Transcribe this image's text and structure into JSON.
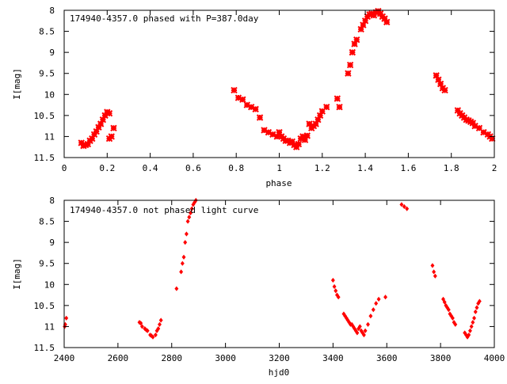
{
  "chart_data": [
    {
      "type": "scatter",
      "title": "174940-4357.0 phased with P=387.0day",
      "xlabel": "phase",
      "ylabel": "I[mag]",
      "xlim": [
        0,
        2
      ],
      "ylim": [
        11.5,
        8
      ],
      "y_reversed": true,
      "xticks": [
        0,
        0.2,
        0.4,
        0.6,
        0.8,
        1,
        1.2,
        1.4,
        1.6,
        1.8,
        2
      ],
      "xtick_labels": [
        "0",
        "0.2",
        "0.4",
        "0.6",
        "0.8",
        "1",
        "1.2",
        "1.4",
        "1.6",
        "1.8",
        "2"
      ],
      "yticks": [
        8,
        8.5,
        9,
        9.5,
        10,
        10.5,
        11,
        11.5
      ],
      "ytick_labels": [
        "8",
        "8.5",
        "9",
        "9.5",
        "10",
        "10.5",
        "11",
        "11.5"
      ],
      "grid": false,
      "marker_color": "#ff0000",
      "series": [
        {
          "x": [
            0.08,
            0.09,
            0.1,
            0.11,
            0.12,
            0.13,
            0.14,
            0.15,
            0.16,
            0.17,
            0.18,
            0.19,
            0.2,
            0.21,
            0.22,
            0.21,
            0.23,
            0.79,
            0.81,
            0.83,
            0.85,
            0.87,
            0.89,
            0.91,
            0.93,
            0.95,
            0.97,
            0.99,
            1.0,
            1.01,
            1.02,
            1.03,
            1.04,
            1.05,
            1.06,
            1.07,
            1.08,
            1.09,
            1.1,
            1.11,
            1.12,
            1.13,
            1.14,
            1.15,
            1.16,
            1.17,
            1.18,
            1.19,
            1.2,
            1.22,
            1.27,
            1.28,
            1.32,
            1.33,
            1.34,
            1.35,
            1.36,
            1.38,
            1.39,
            1.4,
            1.41,
            1.42,
            1.43,
            1.44,
            1.45,
            1.46,
            1.47,
            1.48,
            1.49,
            1.5,
            1.73,
            1.74,
            1.75,
            1.76,
            1.77,
            1.83,
            1.84,
            1.85,
            1.86,
            1.87,
            1.88,
            1.89,
            1.9,
            1.91,
            1.93,
            1.95,
            1.97,
            1.98,
            1.99
          ],
          "y": [
            11.15,
            11.22,
            11.2,
            11.18,
            11.1,
            11.05,
            10.95,
            10.88,
            10.78,
            10.7,
            10.6,
            10.5,
            10.42,
            10.45,
            11.0,
            11.05,
            10.8,
            9.9,
            10.08,
            10.12,
            10.25,
            10.3,
            10.35,
            10.55,
            10.85,
            10.9,
            10.95,
            11.0,
            10.9,
            11.0,
            11.05,
            11.1,
            11.1,
            11.15,
            11.12,
            11.2,
            11.25,
            11.18,
            11.05,
            11.0,
            11.08,
            10.98,
            10.7,
            10.8,
            10.75,
            10.7,
            10.6,
            10.5,
            10.4,
            10.3,
            10.1,
            10.3,
            9.5,
            9.3,
            9.0,
            8.8,
            8.7,
            8.45,
            8.35,
            8.25,
            8.15,
            8.1,
            8.08,
            8.12,
            8.05,
            8.02,
            8.08,
            8.15,
            8.2,
            8.28,
            9.55,
            9.65,
            9.75,
            9.85,
            9.9,
            10.38,
            10.45,
            10.5,
            10.55,
            10.6,
            10.62,
            10.65,
            10.68,
            10.75,
            10.8,
            10.9,
            10.95,
            11.0,
            11.05
          ]
        }
      ]
    },
    {
      "type": "scatter",
      "title": "174940-4357.0 not phased light curve",
      "xlabel": "hjd0",
      "ylabel": "I[mag]",
      "xlim": [
        2400,
        4000
      ],
      "ylim": [
        11.5,
        8
      ],
      "y_reversed": true,
      "xticks": [
        2400,
        2600,
        2800,
        3000,
        3200,
        3400,
        3600,
        3800,
        4000
      ],
      "xtick_labels": [
        "2400",
        "2600",
        "2800",
        "3000",
        "3200",
        "3400",
        "3600",
        "3800",
        "4000"
      ],
      "yticks": [
        8,
        8.5,
        9,
        9.5,
        10,
        10.5,
        11,
        11.5
      ],
      "ytick_labels": [
        "8",
        "8.5",
        "9",
        "9.5",
        "10",
        "10.5",
        "11",
        "11.5"
      ],
      "grid": false,
      "marker_color": "#ff0000",
      "series": [
        {
          "x": [
            2402,
            2404,
            2408,
            2680,
            2685,
            2690,
            2700,
            2705,
            2710,
            2720,
            2725,
            2730,
            2740,
            2745,
            2750,
            2755,
            2760,
            2818,
            2835,
            2840,
            2845,
            2850,
            2855,
            2860,
            2865,
            2870,
            2875,
            2880,
            2885,
            2890,
            3400,
            3405,
            3410,
            3415,
            3420,
            3440,
            3445,
            3450,
            3455,
            3460,
            3465,
            3470,
            3475,
            3480,
            3485,
            3490,
            3495,
            3500,
            3505,
            3510,
            3515,
            3520,
            3530,
            3540,
            3550,
            3560,
            3570,
            3595,
            3655,
            3665,
            3675,
            3770,
            3775,
            3780,
            3810,
            3815,
            3820,
            3825,
            3830,
            3835,
            3840,
            3845,
            3850,
            3855,
            3890,
            3895,
            3900,
            3905,
            3910,
            3915,
            3920,
            3925,
            3930,
            3935,
            3940,
            3945
          ],
          "y": [
            11.0,
            10.95,
            10.8,
            10.9,
            10.92,
            11.0,
            11.05,
            11.08,
            11.1,
            11.2,
            11.22,
            11.25,
            11.2,
            11.1,
            11.05,
            10.95,
            10.85,
            10.1,
            9.7,
            9.5,
            9.35,
            9.0,
            8.8,
            8.5,
            8.4,
            8.3,
            8.2,
            8.1,
            8.05,
            8.0,
            9.9,
            10.05,
            10.15,
            10.25,
            10.3,
            10.7,
            10.75,
            10.8,
            10.85,
            10.9,
            10.95,
            10.95,
            11.0,
            11.05,
            11.1,
            11.15,
            11.05,
            11.0,
            11.1,
            11.15,
            11.2,
            11.1,
            10.95,
            10.75,
            10.6,
            10.45,
            10.35,
            10.3,
            8.1,
            8.15,
            8.2,
            9.55,
            9.7,
            9.8,
            10.35,
            10.42,
            10.5,
            10.55,
            10.6,
            10.7,
            10.75,
            10.8,
            10.9,
            10.95,
            11.15,
            11.2,
            11.25,
            11.2,
            11.1,
            11.0,
            10.9,
            10.8,
            10.65,
            10.55,
            10.45,
            10.4
          ]
        }
      ]
    }
  ]
}
